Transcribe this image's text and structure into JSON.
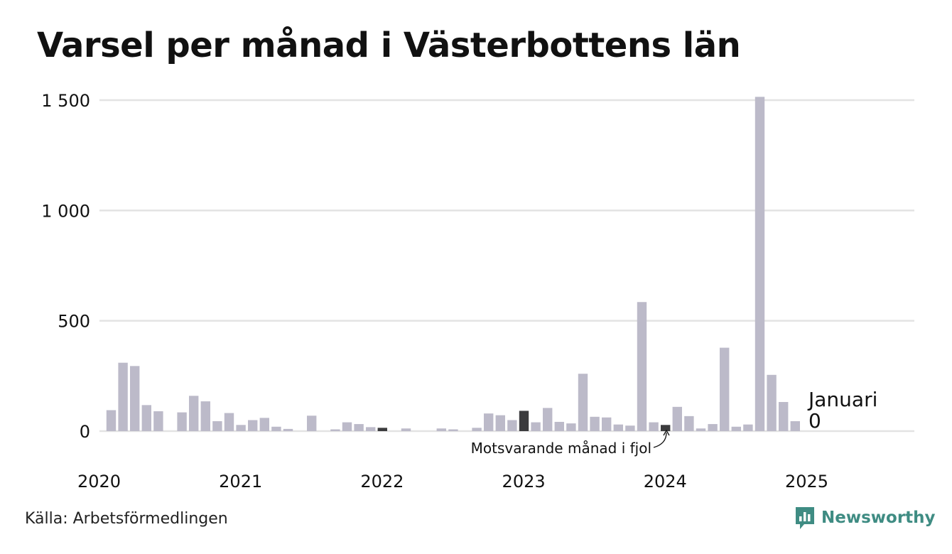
{
  "title": "Varsel per månad i Västerbottens län",
  "source": "Källa: Arbetsförmedlingen",
  "brand": {
    "name": "Newsworthy",
    "logo_icon": "bar-chart-speech-bubble-icon",
    "color": "#3f8c83"
  },
  "chart_data": {
    "type": "bar",
    "title": "Varsel per månad i Västerbottens län",
    "xlabel": "",
    "ylabel": "",
    "ylim": [
      0,
      1500
    ],
    "yticks": [
      0,
      500,
      1000,
      1500
    ],
    "ytick_labels": [
      "0",
      "500",
      "1 000",
      "1 500"
    ],
    "xtick_labels": [
      "2020",
      "2021",
      "2022",
      "2023",
      "2024",
      "2025"
    ],
    "grid": true,
    "colors": {
      "default": "#bcbac9",
      "highlight": "#3b3b3d",
      "grid": "#e3e3e3"
    },
    "months": [
      "2020-01",
      "2020-02",
      "2020-03",
      "2020-04",
      "2020-05",
      "2020-06",
      "2020-07",
      "2020-08",
      "2020-09",
      "2020-10",
      "2020-11",
      "2020-12",
      "2021-01",
      "2021-02",
      "2021-03",
      "2021-04",
      "2021-05",
      "2021-06",
      "2021-07",
      "2021-08",
      "2021-09",
      "2021-10",
      "2021-11",
      "2021-12",
      "2022-01",
      "2022-02",
      "2022-03",
      "2022-04",
      "2022-05",
      "2022-06",
      "2022-07",
      "2022-08",
      "2022-09",
      "2022-10",
      "2022-11",
      "2022-12",
      "2023-01",
      "2023-02",
      "2023-03",
      "2023-04",
      "2023-05",
      "2023-06",
      "2023-07",
      "2023-08",
      "2023-09",
      "2023-10",
      "2023-11",
      "2023-12",
      "2024-01",
      "2024-02",
      "2024-03",
      "2024-04",
      "2024-05",
      "2024-06",
      "2024-07",
      "2024-08",
      "2024-09",
      "2024-10",
      "2024-11",
      "2024-12",
      "2025-01"
    ],
    "values": [
      95,
      310,
      295,
      118,
      90,
      0,
      85,
      160,
      135,
      45,
      82,
      28,
      50,
      60,
      20,
      10,
      0,
      70,
      0,
      8,
      40,
      32,
      18,
      15,
      0,
      12,
      0,
      0,
      12,
      8,
      0,
      15,
      80,
      72,
      50,
      92,
      40,
      105,
      42,
      35,
      260,
      65,
      62,
      30,
      25,
      585,
      40,
      28,
      110,
      68,
      12,
      32,
      378,
      20,
      30,
      1515,
      255,
      132,
      45,
      0,
      0
    ],
    "highlight_months": [
      "2021-12",
      "2022-12",
      "2023-12",
      "2024-12",
      "2025-01"
    ],
    "annotations": {
      "latest_label": "Januari",
      "latest_value": "0",
      "previous_year": "Motsvarande månad i fjol"
    }
  }
}
